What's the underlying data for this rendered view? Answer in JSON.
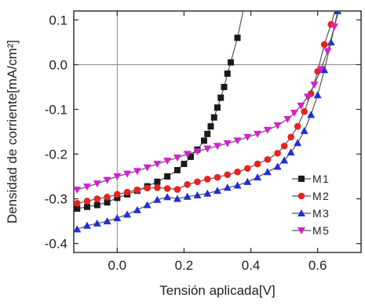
{
  "chart_data": {
    "type": "line",
    "xlabel": "Tensión aplicada[V]",
    "ylabel": "Densidad de corriente[mA/cm²]",
    "xlim": [
      -0.13,
      0.73
    ],
    "ylim": [
      -0.42,
      0.12
    ],
    "x_ticks": [
      0.0,
      0.2,
      0.4,
      0.6
    ],
    "x_tick_labels": [
      "0.0",
      "0.2",
      "0.4",
      "0.6"
    ],
    "y_ticks": [
      0.1,
      0.0,
      -0.1,
      -0.2,
      -0.3,
      -0.4
    ],
    "y_tick_labels": [
      "0.1",
      "0.0",
      "-0.1",
      "-0.2",
      "-0.3",
      "-0.4"
    ],
    "grid": false,
    "reference_lines": {
      "x": 0,
      "y": 0
    },
    "legend_position": "bottom-right",
    "series": [
      {
        "name": "M1",
        "color": "#1a1a1a",
        "marker": "square",
        "x": [
          -0.12,
          -0.09,
          -0.06,
          -0.03,
          0.0,
          0.03,
          0.06,
          0.09,
          0.12,
          0.15,
          0.18,
          0.2,
          0.22,
          0.24,
          0.26,
          0.27,
          0.28,
          0.29,
          0.3,
          0.31,
          0.32,
          0.33,
          0.34,
          0.36,
          0.38
        ],
        "y": [
          -0.322,
          -0.318,
          -0.314,
          -0.308,
          -0.298,
          -0.29,
          -0.282,
          -0.272,
          -0.262,
          -0.25,
          -0.236,
          -0.222,
          -0.206,
          -0.19,
          -0.17,
          -0.155,
          -0.138,
          -0.118,
          -0.096,
          -0.074,
          -0.05,
          -0.02,
          0.005,
          0.06,
          0.13
        ]
      },
      {
        "name": "M2",
        "color": "#e8231e",
        "marker": "circle",
        "x": [
          -0.12,
          -0.09,
          -0.06,
          -0.03,
          0.0,
          0.03,
          0.06,
          0.09,
          0.12,
          0.15,
          0.18,
          0.21,
          0.24,
          0.27,
          0.3,
          0.33,
          0.36,
          0.39,
          0.42,
          0.45,
          0.48,
          0.5,
          0.52,
          0.54,
          0.56,
          0.58,
          0.6,
          0.62,
          0.64,
          0.66
        ],
        "y": [
          -0.31,
          -0.305,
          -0.3,
          -0.296,
          -0.29,
          -0.285,
          -0.28,
          -0.276,
          -0.275,
          -0.277,
          -0.279,
          -0.268,
          -0.262,
          -0.256,
          -0.252,
          -0.246,
          -0.24,
          -0.232,
          -0.222,
          -0.212,
          -0.198,
          -0.182,
          -0.162,
          -0.138,
          -0.105,
          -0.065,
          -0.015,
          0.045,
          0.09,
          0.14
        ]
      },
      {
        "name": "M3",
        "color": "#1f2fd6",
        "marker": "triangle-up",
        "x": [
          -0.12,
          -0.09,
          -0.06,
          -0.03,
          0.0,
          0.03,
          0.06,
          0.09,
          0.12,
          0.15,
          0.18,
          0.21,
          0.24,
          0.27,
          0.3,
          0.33,
          0.36,
          0.39,
          0.42,
          0.45,
          0.48,
          0.5,
          0.52,
          0.54,
          0.56,
          0.58,
          0.6,
          0.62,
          0.64,
          0.66
        ],
        "y": [
          -0.368,
          -0.36,
          -0.355,
          -0.35,
          -0.343,
          -0.335,
          -0.325,
          -0.314,
          -0.302,
          -0.296,
          -0.3,
          -0.295,
          -0.292,
          -0.288,
          -0.282,
          -0.275,
          -0.27,
          -0.262,
          -0.252,
          -0.24,
          -0.228,
          -0.214,
          -0.196,
          -0.175,
          -0.148,
          -0.112,
          -0.068,
          -0.012,
          0.05,
          0.12
        ]
      },
      {
        "name": "M5",
        "color": "#d61fd0",
        "marker": "triangle-down",
        "x": [
          -0.12,
          -0.09,
          -0.06,
          -0.03,
          0.0,
          0.03,
          0.06,
          0.09,
          0.12,
          0.15,
          0.18,
          0.21,
          0.24,
          0.27,
          0.3,
          0.33,
          0.36,
          0.39,
          0.42,
          0.45,
          0.48,
          0.51,
          0.53,
          0.55,
          0.57,
          0.59,
          0.61,
          0.63,
          0.65,
          0.67
        ],
        "y": [
          -0.28,
          -0.273,
          -0.266,
          -0.258,
          -0.25,
          -0.244,
          -0.238,
          -0.23,
          -0.222,
          -0.215,
          -0.208,
          -0.2,
          -0.194,
          -0.188,
          -0.182,
          -0.176,
          -0.17,
          -0.162,
          -0.155,
          -0.146,
          -0.136,
          -0.122,
          -0.108,
          -0.092,
          -0.072,
          -0.045,
          -0.01,
          0.03,
          0.085,
          0.14
        ]
      }
    ]
  }
}
